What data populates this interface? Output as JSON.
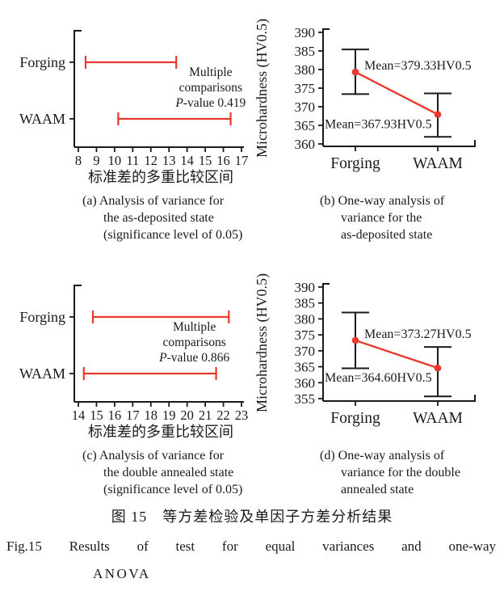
{
  "colors": {
    "accent_red": "#e8392c",
    "ink": "#1a1a1a"
  },
  "captions": {
    "a": [
      "(a) Analysis of variance for",
      "the as-deposited state",
      "(significance level of 0.05)"
    ],
    "b": [
      "(b) One-way analysis of",
      "variance for the",
      "as-deposited state"
    ],
    "c": [
      "(c) Analysis of variance for",
      "the double annealed state",
      "(significance level of 0.05)"
    ],
    "d": [
      "(d) One-way analysis of",
      "variance for the double",
      "annealed state"
    ]
  },
  "figure_caption": {
    "zh": "图 15　等方差检验及单因子方差分析结果",
    "en_line1": "Fig.15 Results of test for equal variances and one-way",
    "en_line2": "ANOVA"
  },
  "chart_data": [
    {
      "id": "a",
      "type": "interval",
      "categories": [
        "Forging",
        "WAAM"
      ],
      "intervals": [
        [
          8.4,
          13.4
        ],
        [
          10.2,
          16.4
        ]
      ],
      "xticks": [
        8,
        9,
        10,
        11,
        12,
        13,
        14,
        15,
        16,
        17
      ],
      "xlim": [
        8,
        17
      ],
      "xlabel": "标准差的多重比较区间",
      "annotation": {
        "line1": "Multiple",
        "line2": "comparisons",
        "p_italic": "P",
        "p_rest": "-value 0.419",
        "x_value": 15.3
      },
      "grid": false
    },
    {
      "id": "b",
      "type": "point-error",
      "categories": [
        "Forging",
        "WAAM"
      ],
      "means": [
        379.33,
        367.93
      ],
      "error_low": [
        373.4,
        361.9
      ],
      "error_high": [
        385.4,
        373.6
      ],
      "yticks": [
        360,
        365,
        370,
        375,
        380,
        385,
        390
      ],
      "ylim": [
        360,
        390
      ],
      "ylabel": "Microhardness (HV0.5)",
      "mean_labels": [
        "Mean=379.33HV0.5",
        "Mean=367.93HV0.5"
      ],
      "grid": false
    },
    {
      "id": "c",
      "type": "interval",
      "categories": [
        "Forging",
        "WAAM"
      ],
      "intervals": [
        [
          14.8,
          22.3
        ],
        [
          14.3,
          21.6
        ]
      ],
      "xticks": [
        14,
        15,
        16,
        17,
        18,
        19,
        20,
        21,
        22,
        23
      ],
      "xlim": [
        14,
        23
      ],
      "xlabel": "标准差的多重比较区间",
      "annotation": {
        "line1": "Multiple",
        "line2": "comparisons",
        "p_italic": "P",
        "p_rest": "-value 0.866",
        "x_value": 20.4
      },
      "grid": false
    },
    {
      "id": "d",
      "type": "point-error",
      "categories": [
        "Forging",
        "WAAM"
      ],
      "means": [
        373.27,
        364.6
      ],
      "error_low": [
        364.5,
        355.7
      ],
      "error_high": [
        382.0,
        371.2
      ],
      "yticks": [
        355,
        360,
        365,
        370,
        375,
        380,
        385,
        390
      ],
      "ylim": [
        355,
        390
      ],
      "ylabel": "Microhardness (HV0.5)",
      "mean_labels": [
        "Mean=373.27HV0.5",
        "Mean=364.60HV0.5"
      ],
      "grid": false
    }
  ]
}
